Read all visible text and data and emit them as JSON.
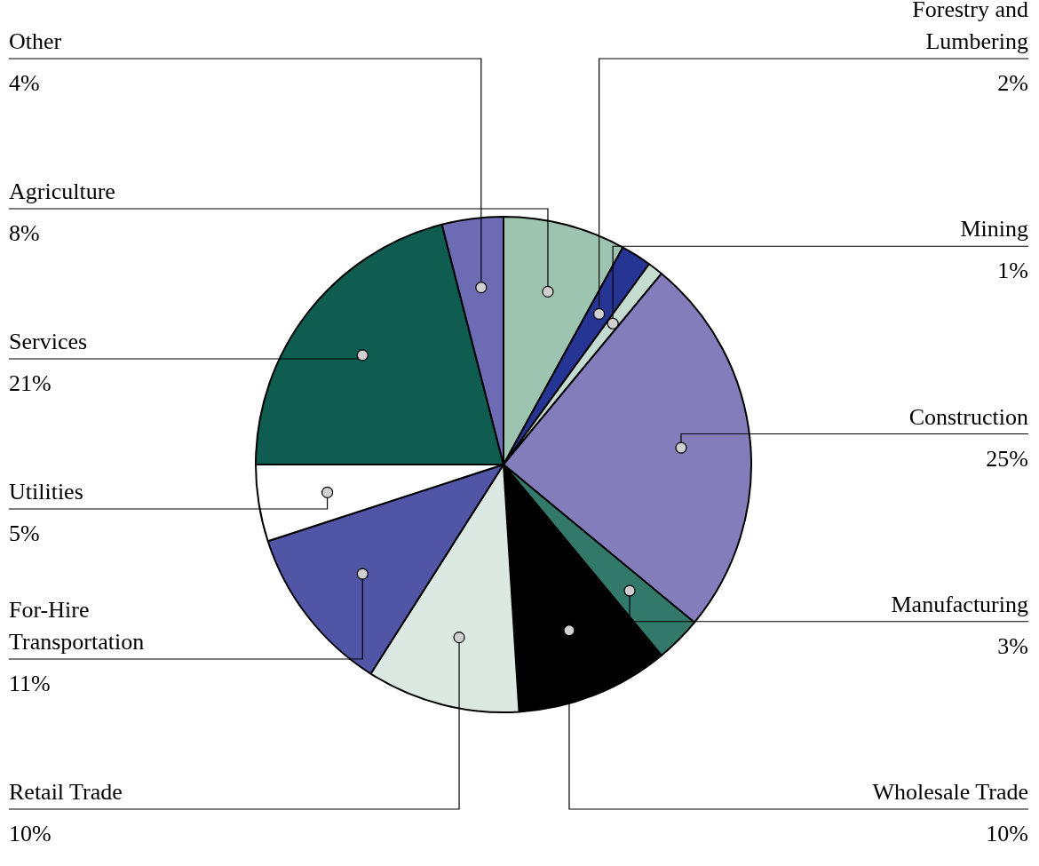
{
  "chart_data": {
    "type": "pie",
    "categories": [
      "Agriculture",
      "Forestry and Lumbering",
      "Mining",
      "Construction",
      "Manufacturing",
      "Wholesale Trade",
      "Retail Trade",
      "For-Hire Transportation",
      "Utilities",
      "Services",
      "Other"
    ],
    "values": [
      8,
      2,
      1,
      25,
      3,
      10,
      10,
      11,
      5,
      21,
      4
    ],
    "value_labels": [
      "8%",
      "2%",
      "1%",
      "25%",
      "3%",
      "10%",
      "10%",
      "11%",
      "5%",
      "21%",
      "4%"
    ],
    "colors": [
      "#9cc4b0",
      "#263593",
      "#c4ddd0",
      "#837dbb",
      "#33796a",
      "#000000",
      "#dce9e3",
      "#5055a6",
      "#ffffff",
      "#0f5c50",
      "#6c6bb4"
    ],
    "legend": false
  }
}
